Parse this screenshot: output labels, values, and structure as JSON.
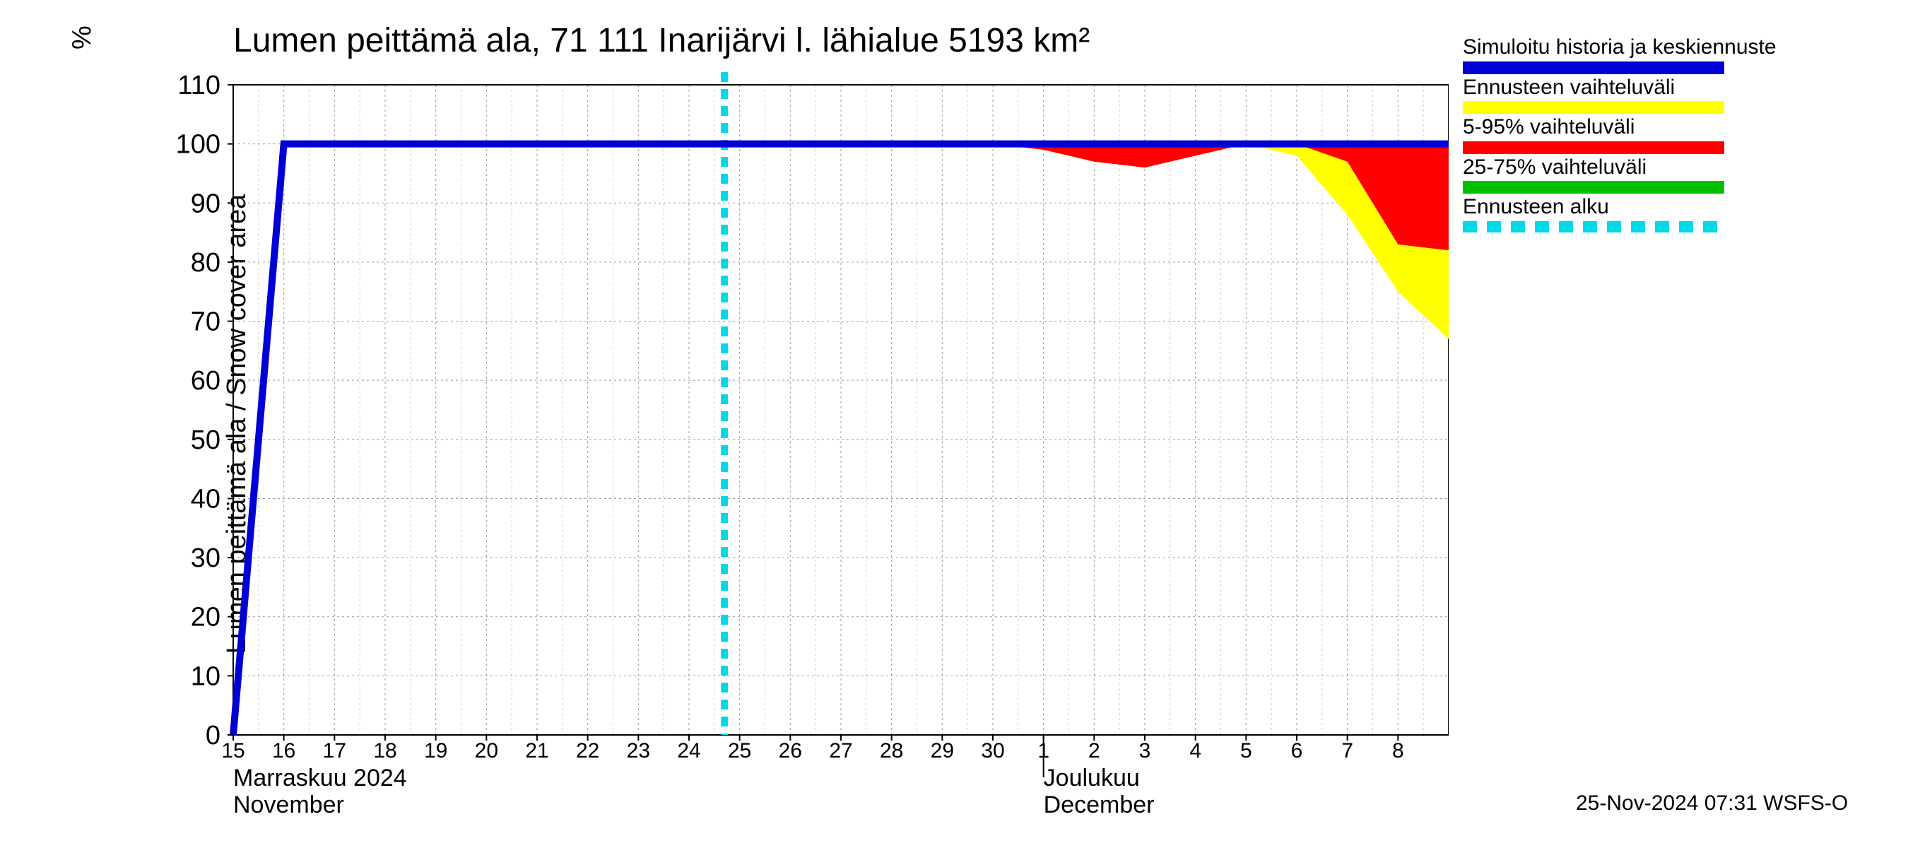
{
  "chart": {
    "type": "area+line",
    "title": "Lumen peittämä ala, 71 111 Inarijärvi l. lähialue 5193 km²",
    "ylabel": "Lumen peittämä ala / Snow cover area",
    "yunit": "%",
    "title_fontsize": 48,
    "label_fontsize": 38,
    "tick_fontsize_y": 38,
    "tick_fontsize_x": 30,
    "month_fontsize": 34,
    "background_color": "#ffffff",
    "plot_border_color": "#000000",
    "grid_color_major": "#9a9a9a",
    "grid_color_minor": "#cccccc",
    "grid_dash": "3,4",
    "ylim": [
      0,
      110
    ],
    "yticks": [
      0,
      10,
      20,
      30,
      40,
      50,
      60,
      70,
      80,
      90,
      100,
      110
    ],
    "x_days": [
      "15",
      "16",
      "17",
      "18",
      "19",
      "20",
      "21",
      "22",
      "23",
      "24",
      "25",
      "26",
      "27",
      "28",
      "29",
      "30",
      "1",
      "2",
      "3",
      "4",
      "5",
      "6",
      "7",
      "8"
    ],
    "x_month_labels": [
      {
        "fi": "Marraskuu 2024",
        "en": "November",
        "at_idx": 0
      },
      {
        "fi": "Joulukuu",
        "en": "December",
        "at_idx": 16
      }
    ],
    "x_minor_per_major": 2,
    "forecast_start_idx": 9.7,
    "series": {
      "blue_line": {
        "label": "Simuloitu historia ja keskiennuste",
        "color": "#0000d6",
        "line_width": 10,
        "data": [
          0,
          100,
          100,
          100,
          100,
          100,
          100,
          100,
          100,
          100,
          100,
          100,
          100,
          100,
          100,
          100,
          100,
          100,
          100,
          100,
          100,
          100,
          100,
          100,
          100
        ]
      },
      "green_band": {
        "label": "25-75% vaihteluväli",
        "color": "#00c000",
        "upper": [
          0,
          100,
          100,
          100,
          100,
          100,
          100,
          100,
          100,
          100,
          100,
          100,
          100,
          100,
          100,
          100,
          100,
          100,
          100,
          100,
          100,
          100,
          100,
          100,
          100
        ],
        "lower": [
          0,
          100,
          100,
          100,
          100,
          100,
          100,
          100,
          100,
          100,
          100,
          100,
          100,
          100,
          100,
          100,
          100,
          100,
          100,
          100,
          100,
          100,
          100,
          100,
          100
        ]
      },
      "red_band": {
        "label": "5-95% vaihteluväli",
        "color": "#ff0000",
        "upper": [
          0,
          100,
          100,
          100,
          100,
          100,
          100,
          100,
          100,
          100,
          100,
          100,
          100,
          100,
          100,
          100,
          100,
          100,
          100,
          100,
          100,
          100,
          100,
          100,
          100
        ],
        "lower": [
          0,
          100,
          100,
          100,
          100,
          100,
          100,
          100,
          100,
          100,
          100,
          100,
          100,
          100,
          100,
          100,
          99,
          97,
          96,
          98,
          100,
          100,
          97,
          83,
          82
        ]
      },
      "yellow_band": {
        "label": "Ennusteen vaihteluväli",
        "color": "#ffff00",
        "upper": [
          0,
          100,
          100,
          100,
          100,
          100,
          100,
          100,
          100,
          100,
          100,
          100,
          100,
          100,
          100,
          100,
          100,
          100,
          100,
          100,
          100,
          100,
          100,
          100,
          100
        ],
        "lower": [
          0,
          100,
          100,
          100,
          100,
          100,
          100,
          100,
          100,
          100,
          100,
          100,
          100,
          100,
          100,
          100,
          99,
          97,
          96,
          98,
          100,
          98,
          88,
          75,
          67
        ]
      },
      "forecast_start": {
        "label": "Ennusteen alku",
        "color": "#00d8e8",
        "dash": "14,10",
        "line_width": 10
      }
    },
    "legend_order": [
      "blue_line",
      "yellow_band",
      "red_band",
      "green_band",
      "forecast_start"
    ],
    "footer": "25-Nov-2024 07:31 WSFS-O"
  }
}
